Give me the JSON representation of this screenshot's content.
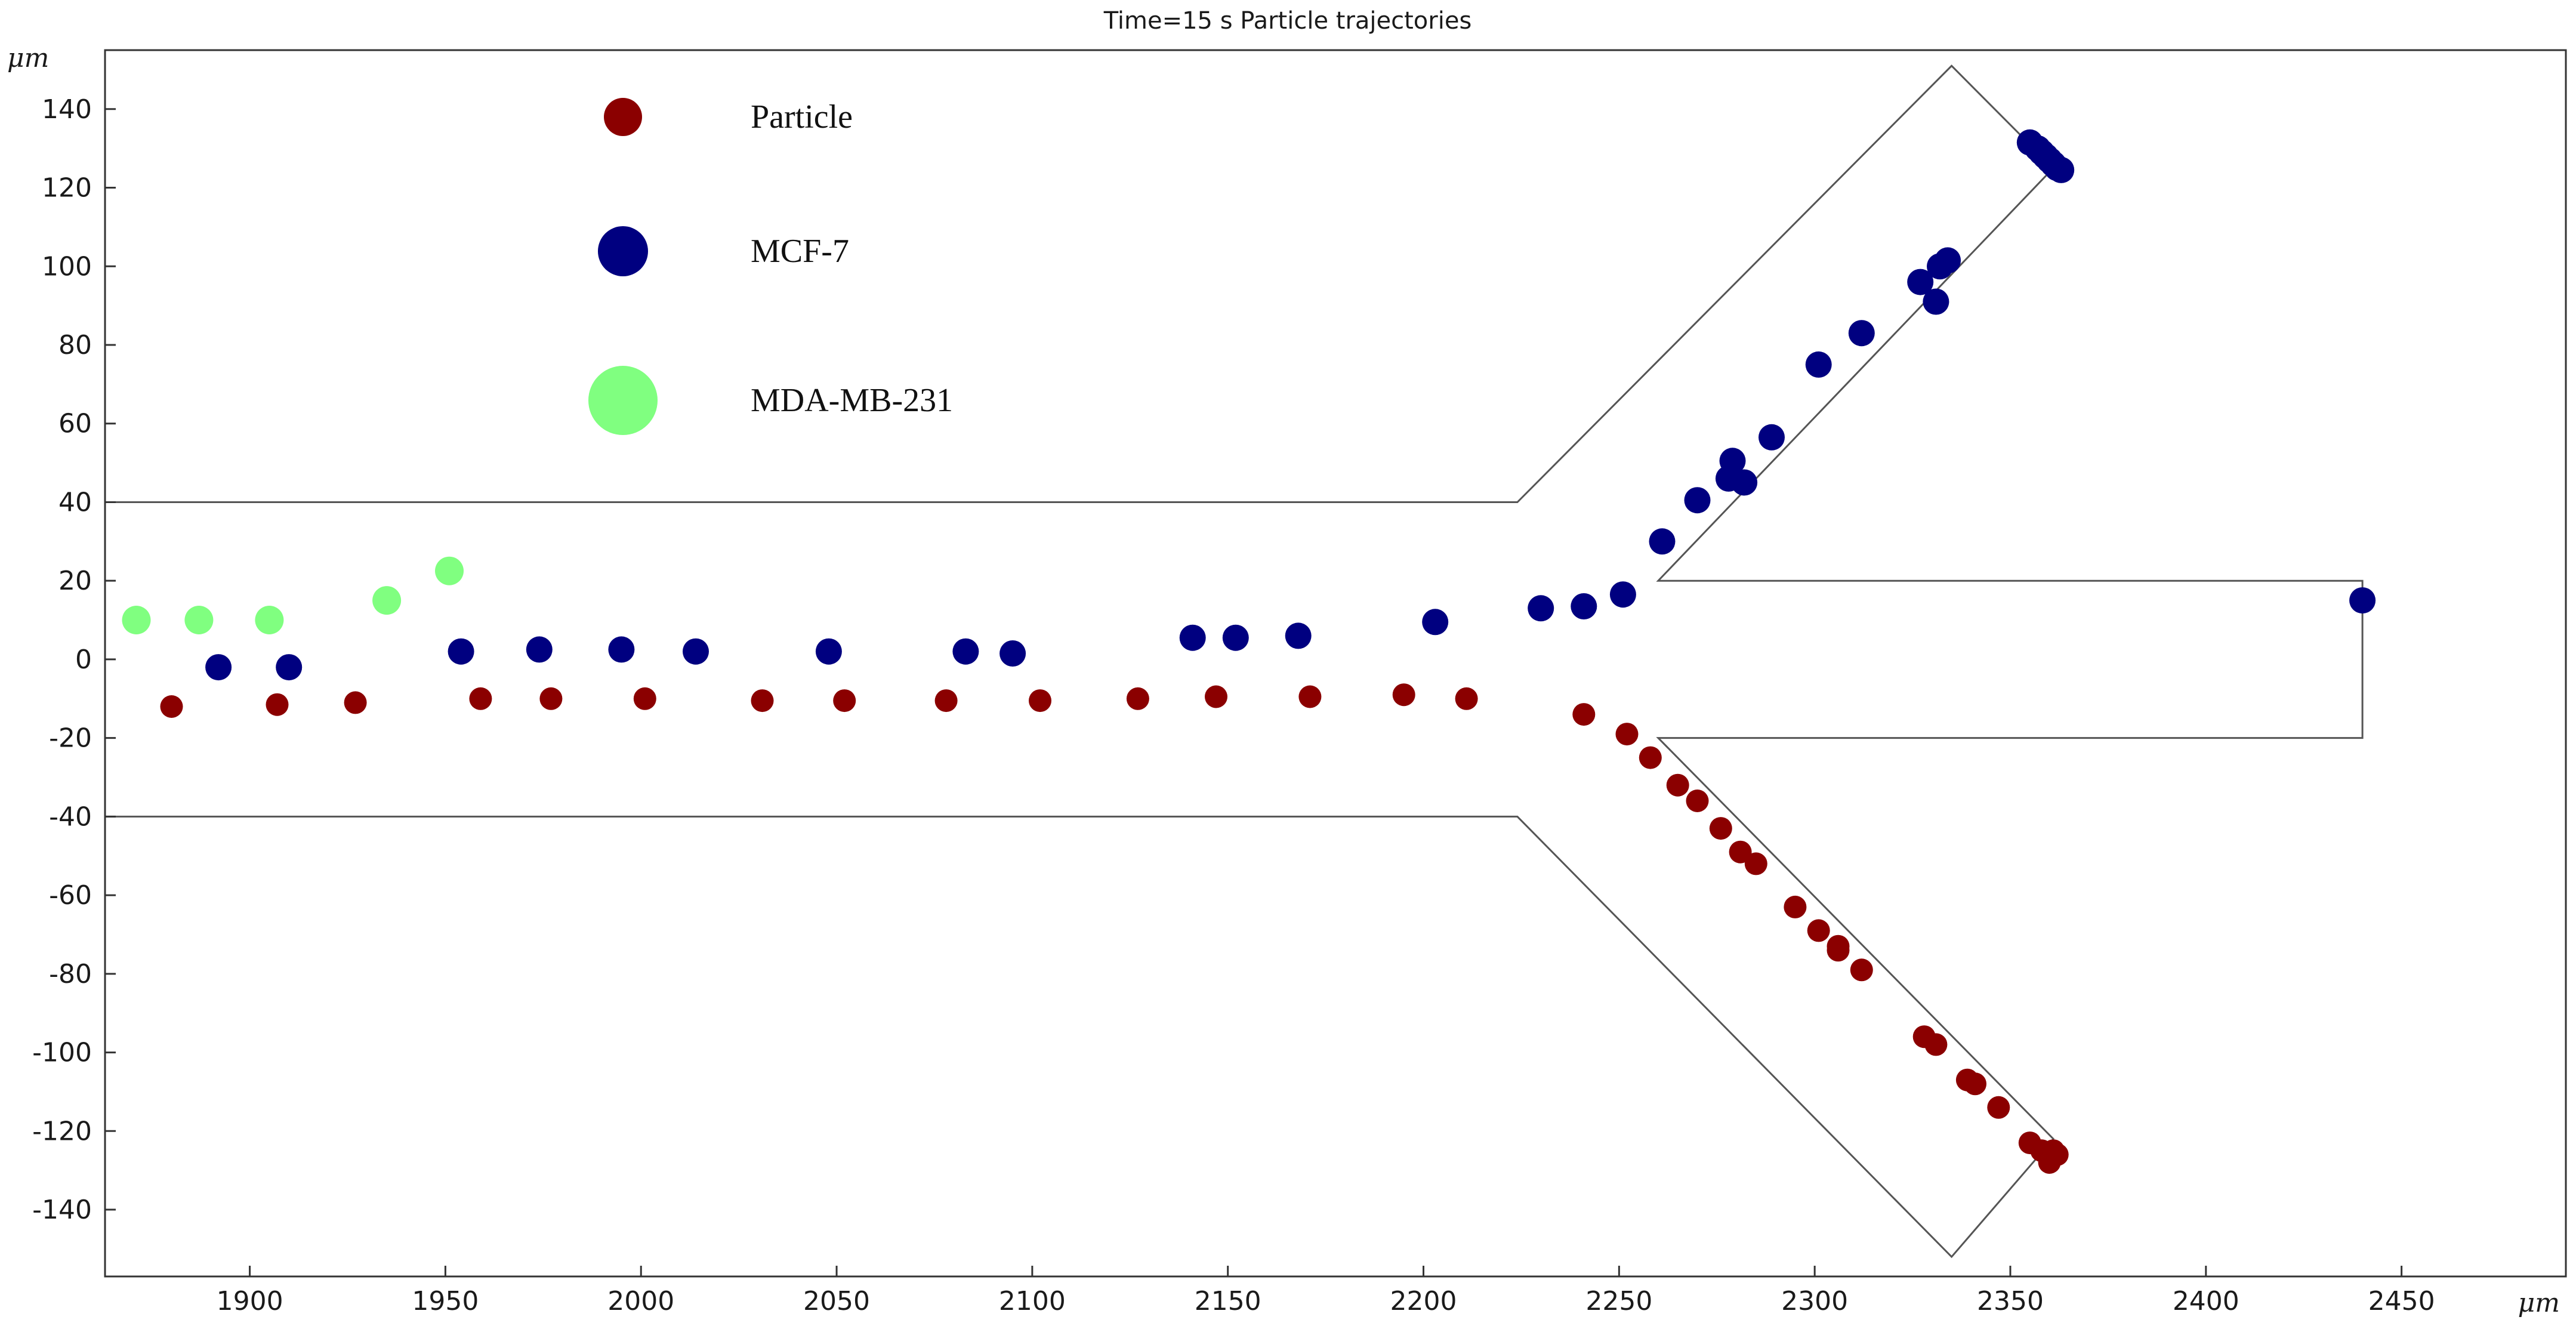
{
  "chart_data": {
    "type": "scatter",
    "title": "Time=15 s  Particle trajectories",
    "x_unit": "μm",
    "y_unit": "μm",
    "xlim": [
      1863,
      2492
    ],
    "ylim": [
      -157,
      155
    ],
    "x_ticks": [
      1900,
      1950,
      2000,
      2050,
      2100,
      2150,
      2200,
      2250,
      2300,
      2350,
      2400,
      2450
    ],
    "y_ticks": [
      -140,
      -120,
      -100,
      -80,
      -60,
      -40,
      -20,
      0,
      20,
      40,
      60,
      80,
      100,
      120,
      140
    ],
    "grid": false,
    "legend_position": "top-left",
    "channel_outline": [
      [
        [
          1863,
          40
        ],
        [
          2224,
          40
        ],
        [
          2335,
          151
        ],
        [
          2361,
          125
        ],
        [
          2260,
          20
        ],
        [
          2440,
          20
        ],
        [
          2440,
          -20
        ],
        [
          2260,
          -20
        ],
        [
          2361,
          -122
        ],
        [
          2335,
          -152
        ],
        [
          2224,
          -40
        ],
        [
          1863,
          -40
        ]
      ]
    ],
    "series": [
      {
        "name": "Particle",
        "color": "#8b0000",
        "size": "small",
        "points": [
          [
            1880,
            -12
          ],
          [
            1907,
            -11.5
          ],
          [
            1927,
            -11
          ],
          [
            1959,
            -10
          ],
          [
            1977,
            -10
          ],
          [
            2001,
            -10
          ],
          [
            2031,
            -10.5
          ],
          [
            2052,
            -10.5
          ],
          [
            2078,
            -10.5
          ],
          [
            2102,
            -10.5
          ],
          [
            2127,
            -10
          ],
          [
            2147,
            -9.5
          ],
          [
            2171,
            -9.5
          ],
          [
            2195,
            -9
          ],
          [
            2211,
            -10
          ],
          [
            2241,
            -14
          ],
          [
            2252,
            -19
          ],
          [
            2258,
            -25
          ],
          [
            2265,
            -32
          ],
          [
            2270,
            -36
          ],
          [
            2276,
            -43
          ],
          [
            2281,
            -49
          ],
          [
            2285,
            -52
          ],
          [
            2295,
            -63
          ],
          [
            2301,
            -69
          ],
          [
            2306,
            -74
          ],
          [
            2306,
            -73
          ],
          [
            2312,
            -79
          ],
          [
            2328,
            -96
          ],
          [
            2331,
            -98
          ],
          [
            2339,
            -107
          ],
          [
            2341,
            -108
          ],
          [
            2347,
            -114
          ],
          [
            2355,
            -123
          ],
          [
            2358,
            -125
          ],
          [
            2360,
            -127
          ],
          [
            2361,
            -125
          ],
          [
            2360,
            -128
          ],
          [
            2362,
            -126
          ]
        ]
      },
      {
        "name": "MCF-7",
        "color": "#000080",
        "size": "medium",
        "points": [
          [
            1892,
            -2
          ],
          [
            1910,
            -2
          ],
          [
            1954,
            2
          ],
          [
            1974,
            2.5
          ],
          [
            1995,
            2.5
          ],
          [
            2014,
            2
          ],
          [
            2048,
            2
          ],
          [
            2083,
            2
          ],
          [
            2095,
            1.5
          ],
          [
            2141,
            5.5
          ],
          [
            2152,
            5.5
          ],
          [
            2168,
            6
          ],
          [
            2203,
            9.5
          ],
          [
            2230,
            13
          ],
          [
            2241,
            13.5
          ],
          [
            2251,
            16.5
          ],
          [
            2261,
            30
          ],
          [
            2270,
            40.5
          ],
          [
            2278,
            46
          ],
          [
            2279,
            50.5
          ],
          [
            2282,
            45
          ],
          [
            2289,
            56.5
          ],
          [
            2301,
            75
          ],
          [
            2312,
            83
          ],
          [
            2327,
            96
          ],
          [
            2331,
            91
          ],
          [
            2332,
            100
          ],
          [
            2334,
            101.5
          ],
          [
            2355,
            131.5
          ],
          [
            2357,
            130
          ],
          [
            2358,
            129
          ],
          [
            2359,
            128
          ],
          [
            2360,
            127
          ],
          [
            2361,
            126
          ],
          [
            2362,
            125
          ],
          [
            2363,
            124.5
          ],
          [
            2440,
            15
          ]
        ]
      },
      {
        "name": "MDA-MB-231",
        "color": "#80ff80",
        "size": "large",
        "points": [
          [
            1871,
            10
          ],
          [
            1887,
            10
          ],
          [
            1905,
            10
          ],
          [
            1935,
            15
          ],
          [
            1951,
            22.5
          ]
        ]
      }
    ]
  }
}
